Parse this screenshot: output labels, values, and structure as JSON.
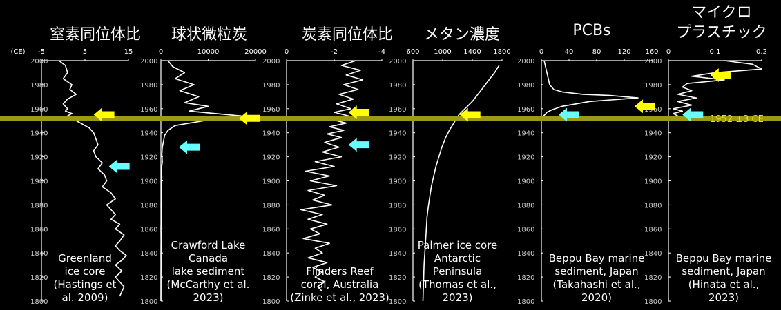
{
  "y_axis_unit": "(CE)",
  "marker_label": "1952 ±3 CE",
  "colors": {
    "background": "#000000",
    "line": "#ffffff",
    "marker_band": "#9c9a14",
    "marker_text": "#e6e22a",
    "arrow_yellow": "#ffff00",
    "arrow_cyan": "#66ffff"
  },
  "chart_data": [
    {
      "type": "line",
      "title": "窒素同位体比",
      "xlim": [
        -5,
        15
      ],
      "xticks": [
        "-5",
        "5",
        "15"
      ],
      "ylim": [
        1800,
        2000
      ],
      "yticks": [
        "2000",
        "1980",
        "1960",
        "1940",
        "1920",
        "1900",
        "1880",
        "1860",
        "1840",
        "1820",
        "1800"
      ],
      "annotation": [
        "Greenland",
        "ice core",
        "(Hastings et",
        "al. 2009)"
      ],
      "arrows": [
        {
          "color": "yellow",
          "year": 1955,
          "x": 7
        },
        {
          "color": "cyan",
          "year": 1912,
          "x": 10.5
        }
      ],
      "series": [
        {
          "x": [
            -1,
            0.5,
            1,
            0,
            2,
            1.5,
            3,
            1,
            0,
            1,
            0.5,
            2,
            1,
            0.5,
            3,
            4,
            5,
            6,
            7,
            7.5,
            8,
            7,
            7.5,
            9,
            8,
            9.5,
            10,
            9,
            11,
            12,
            10,
            11,
            12,
            11,
            13,
            12,
            14,
            13,
            12,
            13,
            14.5,
            13.5,
            12,
            13.5,
            12,
            14,
            13
          ],
          "y": [
            2000,
            1996,
            1990,
            1985,
            1980,
            1976,
            1972,
            1968,
            1964,
            1960,
            1958,
            1956,
            1954,
            1952,
            1950,
            1948,
            1946,
            1944,
            1940,
            1935,
            1930,
            1925,
            1920,
            1915,
            1910,
            1905,
            1900,
            1895,
            1890,
            1885,
            1880,
            1876,
            1872,
            1868,
            1864,
            1860,
            1855,
            1850,
            1846,
            1842,
            1838,
            1834,
            1830,
            1825,
            1820,
            1812,
            1804
          ]
        }
      ]
    },
    {
      "type": "line",
      "title": "球状微粒炭",
      "xlim": [
        0,
        20000
      ],
      "xticks": [
        "0",
        "10000",
        "20000"
      ],
      "ylim": [
        1800,
        2000
      ],
      "yticks": [
        "2000",
        "1980",
        "1960",
        "1940",
        "1920",
        "1900",
        "1880",
        "1860",
        "1840",
        "1820",
        "1800"
      ],
      "annotation": [
        "Crawford Lake",
        "Canada",
        "lake sediment",
        "(McCarthy et al.",
        "2023)"
      ],
      "arrows": [
        {
          "color": "yellow",
          "year": 1952,
          "x": 16500
        },
        {
          "color": "cyan",
          "year": 1928,
          "x": 3800
        }
      ],
      "series": [
        {
          "x": [
            1500,
            2500,
            5000,
            3000,
            7000,
            4000,
            8000,
            5000,
            10000,
            6000,
            17000,
            9000,
            3000,
            1500,
            800,
            600,
            300,
            200,
            300,
            100,
            200,
            50,
            100,
            30,
            80,
            20,
            50,
            20,
            30,
            10,
            20,
            10,
            15,
            5,
            10
          ],
          "y": [
            2000,
            1995,
            1990,
            1985,
            1980,
            1975,
            1970,
            1965,
            1962,
            1958,
            1954,
            1950,
            1946,
            1942,
            1938,
            1934,
            1928,
            1922,
            1916,
            1910,
            1903,
            1898,
            1890,
            1880,
            1870,
            1860,
            1850,
            1840,
            1830,
            1822,
            1815,
            1810,
            1806,
            1803,
            1800
          ]
        }
      ]
    },
    {
      "type": "line",
      "title": "炭素同位体比",
      "xlim": [
        0,
        -4
      ],
      "xticks": [
        "0",
        "-2",
        "-4"
      ],
      "ylim": [
        1800,
        2000
      ],
      "yticks": [
        "2000",
        "1980",
        "1960",
        "1940",
        "1920",
        "1900",
        "1880",
        "1860",
        "1840",
        "1820",
        "1800"
      ],
      "annotation": [
        "Flinders Reef",
        "coral,  Australia",
        "(Zinke et al., 2023)"
      ],
      "arrows": [
        {
          "color": "yellow",
          "year": 1957,
          "x": -2.6
        },
        {
          "color": "cyan",
          "year": 1930,
          "x": -2.6
        }
      ],
      "series": [
        {
          "x": [
            -2.9,
            -2.3,
            -3.1,
            -2.5,
            -3.2,
            -2.4,
            -3.0,
            -2.2,
            -2.8,
            -2.1,
            -2.7,
            -2.0,
            -2.6,
            -1.9,
            -2.5,
            -1.8,
            -2.4,
            -1.7,
            -2.3,
            -1.6,
            -2.2,
            -1.5,
            -2.3,
            -1.2,
            -2.0,
            -0.8,
            -1.8,
            -1.0,
            -2.1,
            -0.9,
            -1.6,
            -1.1,
            -1.9,
            -0.6,
            -1.5,
            -0.9,
            -1.7,
            -1.0,
            -1.4,
            -0.7,
            -1.8,
            -1.2,
            -1.5,
            -0.9,
            -1.7,
            -1.1,
            -1.5,
            -1.2,
            -1.6,
            -1.3,
            -1.5
          ],
          "y": [
            2000,
            1996,
            1992,
            1988,
            1984,
            1980,
            1976,
            1972,
            1968,
            1964,
            1960,
            1957,
            1954,
            1951,
            1948,
            1945,
            1942,
            1939,
            1936,
            1932,
            1928,
            1924,
            1920,
            1916,
            1912,
            1908,
            1904,
            1900,
            1896,
            1892,
            1888,
            1884,
            1880,
            1876,
            1872,
            1868,
            1864,
            1860,
            1856,
            1852,
            1848,
            1844,
            1840,
            1836,
            1832,
            1828,
            1824,
            1820,
            1816,
            1812,
            1808
          ]
        }
      ]
    },
    {
      "type": "line",
      "title": "メタン濃度",
      "xlim": [
        600,
        1800
      ],
      "xticks": [
        "600",
        "1000",
        "1400",
        "1800"
      ],
      "ylim": [
        1800,
        2000
      ],
      "yticks": [
        "2000",
        "1980",
        "1960",
        "1940",
        "1920",
        "1900",
        "1880",
        "1860",
        "1840",
        "1820",
        "1800"
      ],
      "annotation": [
        "Palmer ice core",
        "Antarctic",
        "Peninsula",
        "(Thomas et al.,",
        "2023)"
      ],
      "arrows": [
        {
          "color": "yellow",
          "year": 1955,
          "x": 1230
        }
      ],
      "series": [
        {
          "x": [
            1760,
            1700,
            1600,
            1500,
            1400,
            1300,
            1220,
            1150,
            1090,
            1040,
            990,
            950,
            910,
            880,
            850,
            830,
            810,
            790,
            780,
            770,
            760,
            750,
            745,
            740,
            735
          ],
          "y": [
            1996,
            1990,
            1982,
            1974,
            1966,
            1960,
            1955,
            1948,
            1942,
            1936,
            1928,
            1920,
            1912,
            1904,
            1896,
            1888,
            1880,
            1870,
            1860,
            1850,
            1840,
            1830,
            1820,
            1810,
            1800
          ]
        }
      ]
    },
    {
      "type": "line",
      "title": "PCBs",
      "xlim": [
        0,
        160
      ],
      "xticks": [
        "0",
        "40",
        "80",
        "120",
        "160"
      ],
      "ylim": [
        1800,
        2000
      ],
      "yticks": [
        "2000",
        "1980",
        "1960",
        "1940",
        "1920",
        "1900",
        "1880",
        "1860",
        "1840",
        "1820",
        "1800"
      ],
      "annotation": [
        "Beppu Bay marine",
        "sediment, Japan",
        "(Takahashi et al.,",
        "2020)"
      ],
      "arrows": [
        {
          "color": "yellow",
          "year": 1962,
          "x": 135
        },
        {
          "color": "cyan",
          "year": 1955,
          "x": 25
        }
      ],
      "series": [
        {
          "x": [
            4,
            6,
            8,
            10,
            12,
            18,
            30,
            60,
            100,
            140,
            70,
            30,
            15,
            8,
            5,
            3,
            6,
            2,
            1
          ],
          "y": [
            2000,
            1995,
            1990,
            1985,
            1980,
            1976,
            1974,
            1972,
            1971,
            1969,
            1966,
            1962,
            1959,
            1957,
            1955,
            1954,
            1953,
            1952,
            1950
          ]
        }
      ]
    },
    {
      "type": "line",
      "title": "マイクロ\nプラスチック",
      "xlim": [
        0,
        0.2
      ],
      "xticks": [
        "0",
        "0.1",
        "0.2"
      ],
      "ylim": [
        1800,
        2000
      ],
      "yticks": [
        "2000",
        "1980",
        "1960",
        "1940",
        "1920",
        "1900",
        "1880",
        "1860",
        "1840",
        "1820",
        "1800"
      ],
      "annotation": [
        "Beppu Bay marine",
        "sediment, Japan",
        "(Hinata et al.,",
        "2023)"
      ],
      "arrows": [
        {
          "color": "yellow",
          "year": 1988,
          "x": 0.09
        },
        {
          "color": "cyan",
          "year": 1955,
          "x": 0.03
        }
      ],
      "series": [
        {
          "x": [
            0.12,
            0.18,
            0.2,
            0.1,
            0.05,
            0.12,
            0.04,
            0.03,
            0.05,
            0.02,
            0.06,
            0.02,
            0.05,
            0.01,
            0.03,
            0.01,
            0.02,
            0.005,
            0.01,
            0
          ],
          "y": [
            2000,
            1997,
            1993,
            1990,
            1987,
            1984,
            1981,
            1978,
            1975,
            1972,
            1969,
            1966,
            1963,
            1960,
            1958,
            1956,
            1954,
            1953,
            1952,
            1951
          ]
        }
      ]
    }
  ]
}
